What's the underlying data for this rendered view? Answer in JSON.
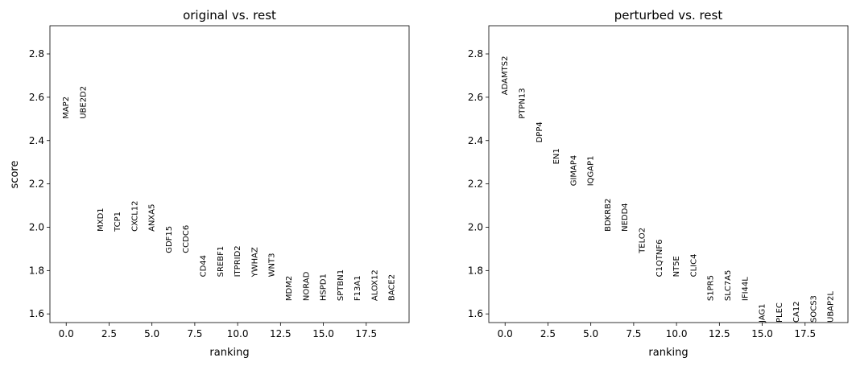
{
  "chart_data": [
    {
      "type": "scatter",
      "title": "original vs. rest",
      "xlabel": "ranking",
      "ylabel": "score",
      "xlim": [
        -0.95,
        20
      ],
      "ylim": [
        1.56,
        2.93
      ],
      "xticks": [
        0.0,
        2.5,
        5.0,
        7.5,
        10.0,
        12.5,
        15.0,
        17.5
      ],
      "xtick_labels": [
        "0.0",
        "2.5",
        "5.0",
        "7.5",
        "10.0",
        "12.5",
        "15.0",
        "17.5"
      ],
      "yticks": [
        1.6,
        1.8,
        2.0,
        2.2,
        2.4,
        2.6,
        2.8
      ],
      "ytick_labels": [
        "1.6",
        "1.8",
        "2.0",
        "2.2",
        "2.4",
        "2.6",
        "2.8"
      ],
      "grid": false,
      "points": [
        {
          "x": 0,
          "y": 2.5,
          "label": "MAP2"
        },
        {
          "x": 1,
          "y": 2.5,
          "label": "UBE2D2"
        },
        {
          "x": 2,
          "y": 1.98,
          "label": "MXD1"
        },
        {
          "x": 3,
          "y": 1.98,
          "label": "TCP1"
        },
        {
          "x": 4,
          "y": 1.98,
          "label": "CXCL12"
        },
        {
          "x": 5,
          "y": 1.98,
          "label": "ANXA5"
        },
        {
          "x": 6,
          "y": 1.88,
          "label": "GDF15"
        },
        {
          "x": 7,
          "y": 1.88,
          "label": "CCDC6"
        },
        {
          "x": 8,
          "y": 1.77,
          "label": "CD44"
        },
        {
          "x": 9,
          "y": 1.77,
          "label": "SREBF1"
        },
        {
          "x": 10,
          "y": 1.77,
          "label": "ITPRID2"
        },
        {
          "x": 11,
          "y": 1.77,
          "label": "YWHAZ"
        },
        {
          "x": 12,
          "y": 1.77,
          "label": "WNT3"
        },
        {
          "x": 13,
          "y": 1.66,
          "label": "MDM2"
        },
        {
          "x": 14,
          "y": 1.66,
          "label": "NORAD"
        },
        {
          "x": 15,
          "y": 1.66,
          "label": "HSPD1"
        },
        {
          "x": 16,
          "y": 1.66,
          "label": "SPTBN1"
        },
        {
          "x": 17,
          "y": 1.66,
          "label": "F13A1"
        },
        {
          "x": 18,
          "y": 1.66,
          "label": "ALOX12"
        },
        {
          "x": 19,
          "y": 1.66,
          "label": "BACE2"
        }
      ]
    },
    {
      "type": "scatter",
      "title": "perturbed vs. rest",
      "xlabel": "ranking",
      "ylabel": "",
      "xlim": [
        -0.95,
        20
      ],
      "ylim": [
        1.56,
        2.93
      ],
      "xticks": [
        0.0,
        2.5,
        5.0,
        7.5,
        10.0,
        12.5,
        15.0,
        17.5
      ],
      "xtick_labels": [
        "0.0",
        "2.5",
        "5.0",
        "7.5",
        "10.0",
        "12.5",
        "15.0",
        "17.5"
      ],
      "yticks": [
        1.6,
        1.8,
        2.0,
        2.2,
        2.4,
        2.6,
        2.8
      ],
      "ytick_labels": [
        "1.6",
        "1.8",
        "2.0",
        "2.2",
        "2.4",
        "2.6",
        "2.8"
      ],
      "grid": false,
      "points": [
        {
          "x": 0,
          "y": 2.61,
          "label": "ADAMTS2"
        },
        {
          "x": 1,
          "y": 2.5,
          "label": "PTPN13"
        },
        {
          "x": 2,
          "y": 2.39,
          "label": "DPP4"
        },
        {
          "x": 3,
          "y": 2.29,
          "label": "EN1"
        },
        {
          "x": 4,
          "y": 2.19,
          "label": "GIMAP4"
        },
        {
          "x": 5,
          "y": 2.19,
          "label": "IQGAP1"
        },
        {
          "x": 6,
          "y": 1.98,
          "label": "BDKRB2"
        },
        {
          "x": 7,
          "y": 1.98,
          "label": "NEDD4"
        },
        {
          "x": 8,
          "y": 1.88,
          "label": "TELO2"
        },
        {
          "x": 9,
          "y": 1.77,
          "label": "C1QTNF6"
        },
        {
          "x": 10,
          "y": 1.77,
          "label": "NT5E"
        },
        {
          "x": 11,
          "y": 1.77,
          "label": "CLIC4"
        },
        {
          "x": 12,
          "y": 1.66,
          "label": "S1PR5"
        },
        {
          "x": 13,
          "y": 1.66,
          "label": "SLC7A5"
        },
        {
          "x": 14,
          "y": 1.66,
          "label": "IFI44L"
        },
        {
          "x": 15,
          "y": 1.56,
          "label": "JAG1"
        },
        {
          "x": 16,
          "y": 1.56,
          "label": "PLEC"
        },
        {
          "x": 17,
          "y": 1.56,
          "label": "CA12"
        },
        {
          "x": 18,
          "y": 1.56,
          "label": "SOCS3"
        },
        {
          "x": 19,
          "y": 1.56,
          "label": "UBAP2L"
        }
      ]
    }
  ]
}
